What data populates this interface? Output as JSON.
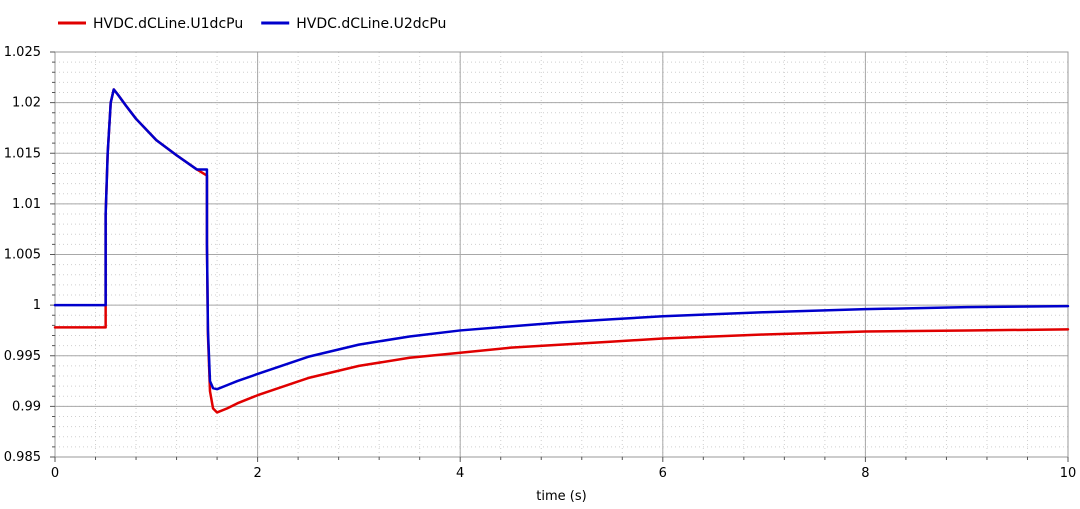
{
  "chart_data": {
    "type": "line",
    "title": "",
    "xlabel": "time (s)",
    "ylabel": "",
    "xlim": [
      0,
      10
    ],
    "ylim": [
      0.985,
      1.025
    ],
    "x_ticks": [
      0,
      2,
      4,
      6,
      8,
      10
    ],
    "x_tick_labels": [
      "0",
      "2",
      "4",
      "6",
      "8",
      "10"
    ],
    "y_ticks": [
      0.985,
      0.99,
      0.995,
      1,
      1.005,
      1.01,
      1.015,
      1.02,
      1.025
    ],
    "y_tick_labels": [
      "0.985",
      "0.99",
      "0.995",
      "1",
      "1.005",
      "1.01",
      "1.015",
      "1.02",
      "1.025"
    ],
    "grid": true,
    "minor_grid": true,
    "legend_position": "top-left",
    "series": [
      {
        "name": "HVDC.dCLine.U1dcPu",
        "color": "#e00000",
        "x": [
          0,
          0.5,
          0.5,
          0.52,
          0.55,
          0.58,
          0.62,
          0.7,
          0.8,
          1.0,
          1.2,
          1.4,
          1.5,
          1.5,
          1.51,
          1.53,
          1.56,
          1.6,
          1.7,
          1.8,
          2.0,
          2.5,
          3.0,
          3.5,
          4.0,
          4.5,
          5.0,
          5.5,
          6.0,
          7.0,
          8.0,
          9.0,
          10.0
        ],
        "y": [
          0.9978,
          0.9978,
          1.009,
          1.015,
          1.02,
          1.0213,
          1.0208,
          1.0197,
          1.0184,
          1.0163,
          1.0148,
          1.0134,
          1.0128,
          1.006,
          0.997,
          0.9915,
          0.9898,
          0.9894,
          0.9898,
          0.9903,
          0.9911,
          0.9928,
          0.994,
          0.9948,
          0.9953,
          0.9958,
          0.9961,
          0.9964,
          0.9967,
          0.9971,
          0.9974,
          0.9975,
          0.9976
        ]
      },
      {
        "name": "HVDC.dCLine.U2dcPu",
        "color": "#0000cc",
        "x": [
          0,
          0.5,
          0.5,
          0.52,
          0.55,
          0.58,
          0.62,
          0.7,
          0.8,
          1.0,
          1.2,
          1.4,
          1.5,
          1.5,
          1.51,
          1.53,
          1.56,
          1.6,
          1.7,
          1.8,
          2.0,
          2.5,
          3.0,
          3.5,
          4.0,
          4.5,
          5.0,
          5.5,
          6.0,
          7.0,
          8.0,
          9.0,
          10.0
        ],
        "y": [
          1.0,
          1.0,
          1.009,
          1.015,
          1.02,
          1.0213,
          1.0208,
          1.0197,
          1.0184,
          1.0163,
          1.0148,
          1.0134,
          1.0134,
          1.006,
          0.9975,
          0.9925,
          0.9918,
          0.9917,
          0.9921,
          0.9925,
          0.9932,
          0.9949,
          0.9961,
          0.9969,
          0.9975,
          0.9979,
          0.9983,
          0.9986,
          0.9989,
          0.9993,
          0.9996,
          0.9998,
          0.9999
        ]
      }
    ]
  }
}
